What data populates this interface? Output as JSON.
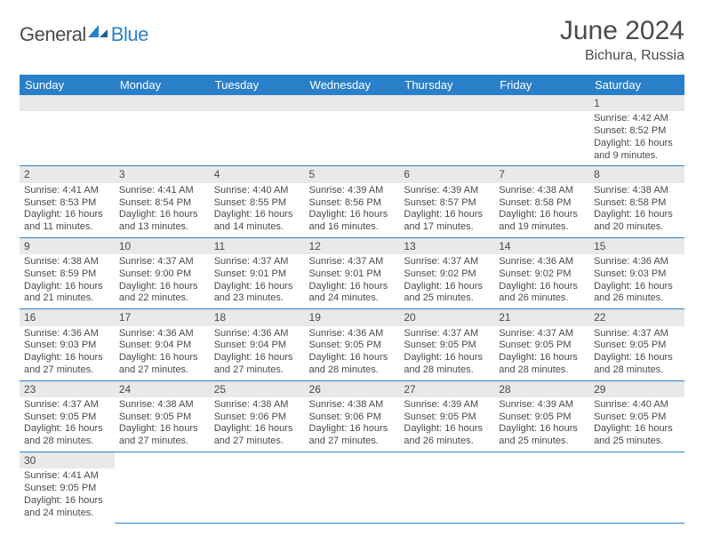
{
  "logo": {
    "part1": "General",
    "part2": "Blue"
  },
  "title": "June 2024",
  "location": "Bichura, Russia",
  "colors": {
    "header_bg": "#2a7fc9",
    "header_fg": "#ffffff",
    "daynum_bg": "#e9e9e9",
    "text": "#4a4a4a",
    "cell_border": "#2a7fc9",
    "background": "#ffffff"
  },
  "typography": {
    "month_title_size": 30,
    "location_size": 16,
    "weekday_size": 13,
    "daynum_size": 12,
    "body_size": 11
  },
  "weekdays": [
    "Sunday",
    "Monday",
    "Tuesday",
    "Wednesday",
    "Thursday",
    "Friday",
    "Saturday"
  ],
  "weeks": [
    [
      null,
      null,
      null,
      null,
      null,
      null,
      {
        "n": "1",
        "sr": "Sunrise: 4:42 AM",
        "ss": "Sunset: 8:52 PM",
        "dl": "Daylight: 16 hours and 9 minutes."
      }
    ],
    [
      {
        "n": "2",
        "sr": "Sunrise: 4:41 AM",
        "ss": "Sunset: 8:53 PM",
        "dl": "Daylight: 16 hours and 11 minutes."
      },
      {
        "n": "3",
        "sr": "Sunrise: 4:41 AM",
        "ss": "Sunset: 8:54 PM",
        "dl": "Daylight: 16 hours and 13 minutes."
      },
      {
        "n": "4",
        "sr": "Sunrise: 4:40 AM",
        "ss": "Sunset: 8:55 PM",
        "dl": "Daylight: 16 hours and 14 minutes."
      },
      {
        "n": "5",
        "sr": "Sunrise: 4:39 AM",
        "ss": "Sunset: 8:56 PM",
        "dl": "Daylight: 16 hours and 16 minutes."
      },
      {
        "n": "6",
        "sr": "Sunrise: 4:39 AM",
        "ss": "Sunset: 8:57 PM",
        "dl": "Daylight: 16 hours and 17 minutes."
      },
      {
        "n": "7",
        "sr": "Sunrise: 4:38 AM",
        "ss": "Sunset: 8:58 PM",
        "dl": "Daylight: 16 hours and 19 minutes."
      },
      {
        "n": "8",
        "sr": "Sunrise: 4:38 AM",
        "ss": "Sunset: 8:58 PM",
        "dl": "Daylight: 16 hours and 20 minutes."
      }
    ],
    [
      {
        "n": "9",
        "sr": "Sunrise: 4:38 AM",
        "ss": "Sunset: 8:59 PM",
        "dl": "Daylight: 16 hours and 21 minutes."
      },
      {
        "n": "10",
        "sr": "Sunrise: 4:37 AM",
        "ss": "Sunset: 9:00 PM",
        "dl": "Daylight: 16 hours and 22 minutes."
      },
      {
        "n": "11",
        "sr": "Sunrise: 4:37 AM",
        "ss": "Sunset: 9:01 PM",
        "dl": "Daylight: 16 hours and 23 minutes."
      },
      {
        "n": "12",
        "sr": "Sunrise: 4:37 AM",
        "ss": "Sunset: 9:01 PM",
        "dl": "Daylight: 16 hours and 24 minutes."
      },
      {
        "n": "13",
        "sr": "Sunrise: 4:37 AM",
        "ss": "Sunset: 9:02 PM",
        "dl": "Daylight: 16 hours and 25 minutes."
      },
      {
        "n": "14",
        "sr": "Sunrise: 4:36 AM",
        "ss": "Sunset: 9:02 PM",
        "dl": "Daylight: 16 hours and 26 minutes."
      },
      {
        "n": "15",
        "sr": "Sunrise: 4:36 AM",
        "ss": "Sunset: 9:03 PM",
        "dl": "Daylight: 16 hours and 26 minutes."
      }
    ],
    [
      {
        "n": "16",
        "sr": "Sunrise: 4:36 AM",
        "ss": "Sunset: 9:03 PM",
        "dl": "Daylight: 16 hours and 27 minutes."
      },
      {
        "n": "17",
        "sr": "Sunrise: 4:36 AM",
        "ss": "Sunset: 9:04 PM",
        "dl": "Daylight: 16 hours and 27 minutes."
      },
      {
        "n": "18",
        "sr": "Sunrise: 4:36 AM",
        "ss": "Sunset: 9:04 PM",
        "dl": "Daylight: 16 hours and 27 minutes."
      },
      {
        "n": "19",
        "sr": "Sunrise: 4:36 AM",
        "ss": "Sunset: 9:05 PM",
        "dl": "Daylight: 16 hours and 28 minutes."
      },
      {
        "n": "20",
        "sr": "Sunrise: 4:37 AM",
        "ss": "Sunset: 9:05 PM",
        "dl": "Daylight: 16 hours and 28 minutes."
      },
      {
        "n": "21",
        "sr": "Sunrise: 4:37 AM",
        "ss": "Sunset: 9:05 PM",
        "dl": "Daylight: 16 hours and 28 minutes."
      },
      {
        "n": "22",
        "sr": "Sunrise: 4:37 AM",
        "ss": "Sunset: 9:05 PM",
        "dl": "Daylight: 16 hours and 28 minutes."
      }
    ],
    [
      {
        "n": "23",
        "sr": "Sunrise: 4:37 AM",
        "ss": "Sunset: 9:05 PM",
        "dl": "Daylight: 16 hours and 28 minutes."
      },
      {
        "n": "24",
        "sr": "Sunrise: 4:38 AM",
        "ss": "Sunset: 9:05 PM",
        "dl": "Daylight: 16 hours and 27 minutes."
      },
      {
        "n": "25",
        "sr": "Sunrise: 4:38 AM",
        "ss": "Sunset: 9:06 PM",
        "dl": "Daylight: 16 hours and 27 minutes."
      },
      {
        "n": "26",
        "sr": "Sunrise: 4:38 AM",
        "ss": "Sunset: 9:06 PM",
        "dl": "Daylight: 16 hours and 27 minutes."
      },
      {
        "n": "27",
        "sr": "Sunrise: 4:39 AM",
        "ss": "Sunset: 9:05 PM",
        "dl": "Daylight: 16 hours and 26 minutes."
      },
      {
        "n": "28",
        "sr": "Sunrise: 4:39 AM",
        "ss": "Sunset: 9:05 PM",
        "dl": "Daylight: 16 hours and 25 minutes."
      },
      {
        "n": "29",
        "sr": "Sunrise: 4:40 AM",
        "ss": "Sunset: 9:05 PM",
        "dl": "Daylight: 16 hours and 25 minutes."
      }
    ],
    [
      {
        "n": "30",
        "sr": "Sunrise: 4:41 AM",
        "ss": "Sunset: 9:05 PM",
        "dl": "Daylight: 16 hours and 24 minutes."
      },
      null,
      null,
      null,
      null,
      null,
      null
    ]
  ]
}
